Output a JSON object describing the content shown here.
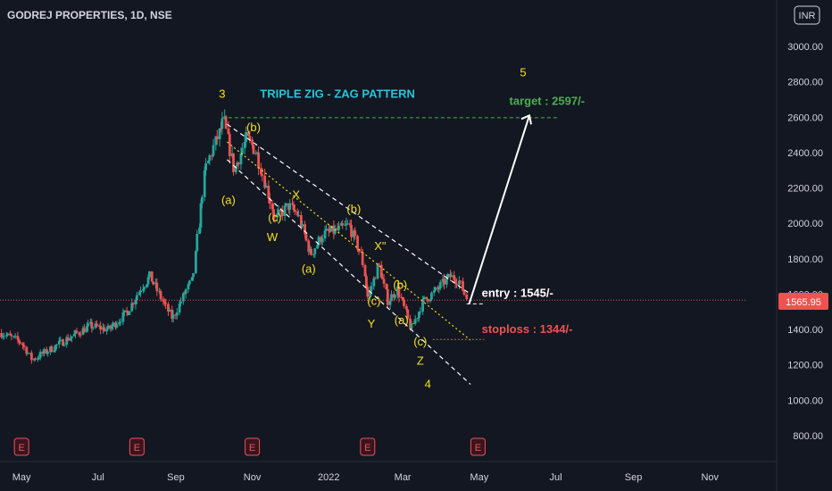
{
  "header": {
    "title": "GODREJ PROPERTIES, 1D, NSE"
  },
  "currency_badge": "INR",
  "price_label": "1565.95",
  "colors": {
    "background": "#131722",
    "up": "#26a69a",
    "down": "#ef5350",
    "wave_label": "#f5e11b",
    "pattern_title": "#26c6da",
    "target": "#4caf50",
    "stoploss": "#ef5350",
    "entry": "#ffffff"
  },
  "chart_data": {
    "type": "candlestick",
    "title": "GODREJ PROPERTIES, 1D, NSE",
    "y_ticks": [
      "3000.00",
      "2800.00",
      "2600.00",
      "2400.00",
      "2200.00",
      "2000.00",
      "1800.00",
      "1600.00",
      "1400.00",
      "1200.00",
      "1000.00",
      "800.00"
    ],
    "y_tick_values": [
      3000,
      2800,
      2600,
      2400,
      2200,
      2000,
      1800,
      1600,
      1400,
      1200,
      1000,
      800
    ],
    "x_ticks": [
      "May",
      "Jul",
      "Sep",
      "Nov",
      "2022",
      "Mar",
      "May",
      "Jul",
      "Sep",
      "Nov"
    ],
    "x_tick_dates": [
      "2021-05",
      "2021-07",
      "2021-09",
      "2021-11",
      "2022-01",
      "2022-03",
      "2022-05",
      "2022-07",
      "2022-09",
      "2022-11"
    ],
    "ylim": [
      700,
      3180
    ],
    "current_price": 1565.95,
    "price_path": [
      {
        "date": "2021-04-15",
        "price": 1380
      },
      {
        "date": "2021-05-01",
        "price": 1330
      },
      {
        "date": "2021-05-10",
        "price": 1230
      },
      {
        "date": "2021-05-25",
        "price": 1290
      },
      {
        "date": "2021-06-10",
        "price": 1360
      },
      {
        "date": "2021-06-25",
        "price": 1420
      },
      {
        "date": "2021-07-10",
        "price": 1400
      },
      {
        "date": "2021-07-25",
        "price": 1500
      },
      {
        "date": "2021-08-05",
        "price": 1640
      },
      {
        "date": "2021-08-12",
        "price": 1700
      },
      {
        "date": "2021-08-22",
        "price": 1560
      },
      {
        "date": "2021-08-30",
        "price": 1460
      },
      {
        "date": "2021-09-08",
        "price": 1600
      },
      {
        "date": "2021-09-15",
        "price": 1680
      },
      {
        "date": "2021-09-20",
        "price": 2000
      },
      {
        "date": "2021-09-25",
        "price": 2300
      },
      {
        "date": "2021-10-01",
        "price": 2420
      },
      {
        "date": "2021-10-10",
        "price": 2580
      },
      {
        "date": "2021-10-18",
        "price": 2300
      },
      {
        "date": "2021-10-28",
        "price": 2480
      },
      {
        "date": "2021-11-05",
        "price": 2400
      },
      {
        "date": "2021-11-12",
        "price": 2220
      },
      {
        "date": "2021-11-20",
        "price": 2020
      },
      {
        "date": "2021-11-30",
        "price": 2100
      },
      {
        "date": "2021-12-08",
        "price": 2050
      },
      {
        "date": "2021-12-18",
        "price": 1820
      },
      {
        "date": "2021-12-28",
        "price": 1940
      },
      {
        "date": "2022-01-08",
        "price": 1960
      },
      {
        "date": "2022-01-18",
        "price": 1990
      },
      {
        "date": "2022-01-28",
        "price": 1800
      },
      {
        "date": "2022-02-02",
        "price": 1580
      },
      {
        "date": "2022-02-10",
        "price": 1770
      },
      {
        "date": "2022-02-18",
        "price": 1560
      },
      {
        "date": "2022-02-25",
        "price": 1630
      },
      {
        "date": "2022-03-03",
        "price": 1520
      },
      {
        "date": "2022-03-08",
        "price": 1400
      },
      {
        "date": "2022-03-18",
        "price": 1560
      },
      {
        "date": "2022-03-28",
        "price": 1620
      },
      {
        "date": "2022-04-08",
        "price": 1700
      },
      {
        "date": "2022-04-15",
        "price": 1680
      },
      {
        "date": "2022-04-22",
        "price": 1565.95
      }
    ],
    "earnings_marks": [
      {
        "date": "2021-05-01",
        "label": "E"
      },
      {
        "date": "2021-08-01",
        "label": "E"
      },
      {
        "date": "2021-11-01",
        "label": "E"
      },
      {
        "date": "2022-02-01",
        "label": "E"
      },
      {
        "date": "2022-04-30",
        "label": "E"
      }
    ],
    "levels": [
      {
        "name": "target",
        "text": "target : 2597/-",
        "value": 2597
      },
      {
        "name": "entry",
        "text": "entry : 1545/-",
        "value": 1545
      },
      {
        "name": "stoploss",
        "text": "stoploss : 1344/-",
        "value": 1344
      }
    ],
    "pattern_title": "TRIPLE ZIG - ZAG PATTERN",
    "wave_labels": [
      {
        "text": "3",
        "date": "2021-10-08",
        "price": 2710
      },
      {
        "text": "(b)",
        "date": "2021-11-02",
        "price": 2520
      },
      {
        "text": "(a)",
        "date": "2021-10-13",
        "price": 2110
      },
      {
        "text": "(c)",
        "date": "2021-11-19",
        "price": 2010
      },
      {
        "text": "W",
        "date": "2021-11-17",
        "price": 1900
      },
      {
        "text": "X",
        "date": "2021-12-06",
        "price": 2140
      },
      {
        "text": "(b)",
        "date": "2022-01-21",
        "price": 2060
      },
      {
        "text": "(a)",
        "date": "2021-12-16",
        "price": 1720
      },
      {
        "text": "X\"",
        "date": "2022-02-11",
        "price": 1850
      },
      {
        "text": "(b)",
        "date": "2022-02-27",
        "price": 1630
      },
      {
        "text": "(c)",
        "date": "2022-02-06",
        "price": 1540
      },
      {
        "text": "Y",
        "date": "2022-02-04",
        "price": 1410
      },
      {
        "text": "(a)",
        "date": "2022-02-28",
        "price": 1430
      },
      {
        "text": "(c)",
        "date": "2022-03-15",
        "price": 1310
      },
      {
        "text": "Z",
        "date": "2022-03-15",
        "price": 1200
      },
      {
        "text": "4",
        "date": "2022-03-21",
        "price": 1070
      },
      {
        "text": "5",
        "date": "2022-06-05",
        "price": 2830
      }
    ]
  }
}
